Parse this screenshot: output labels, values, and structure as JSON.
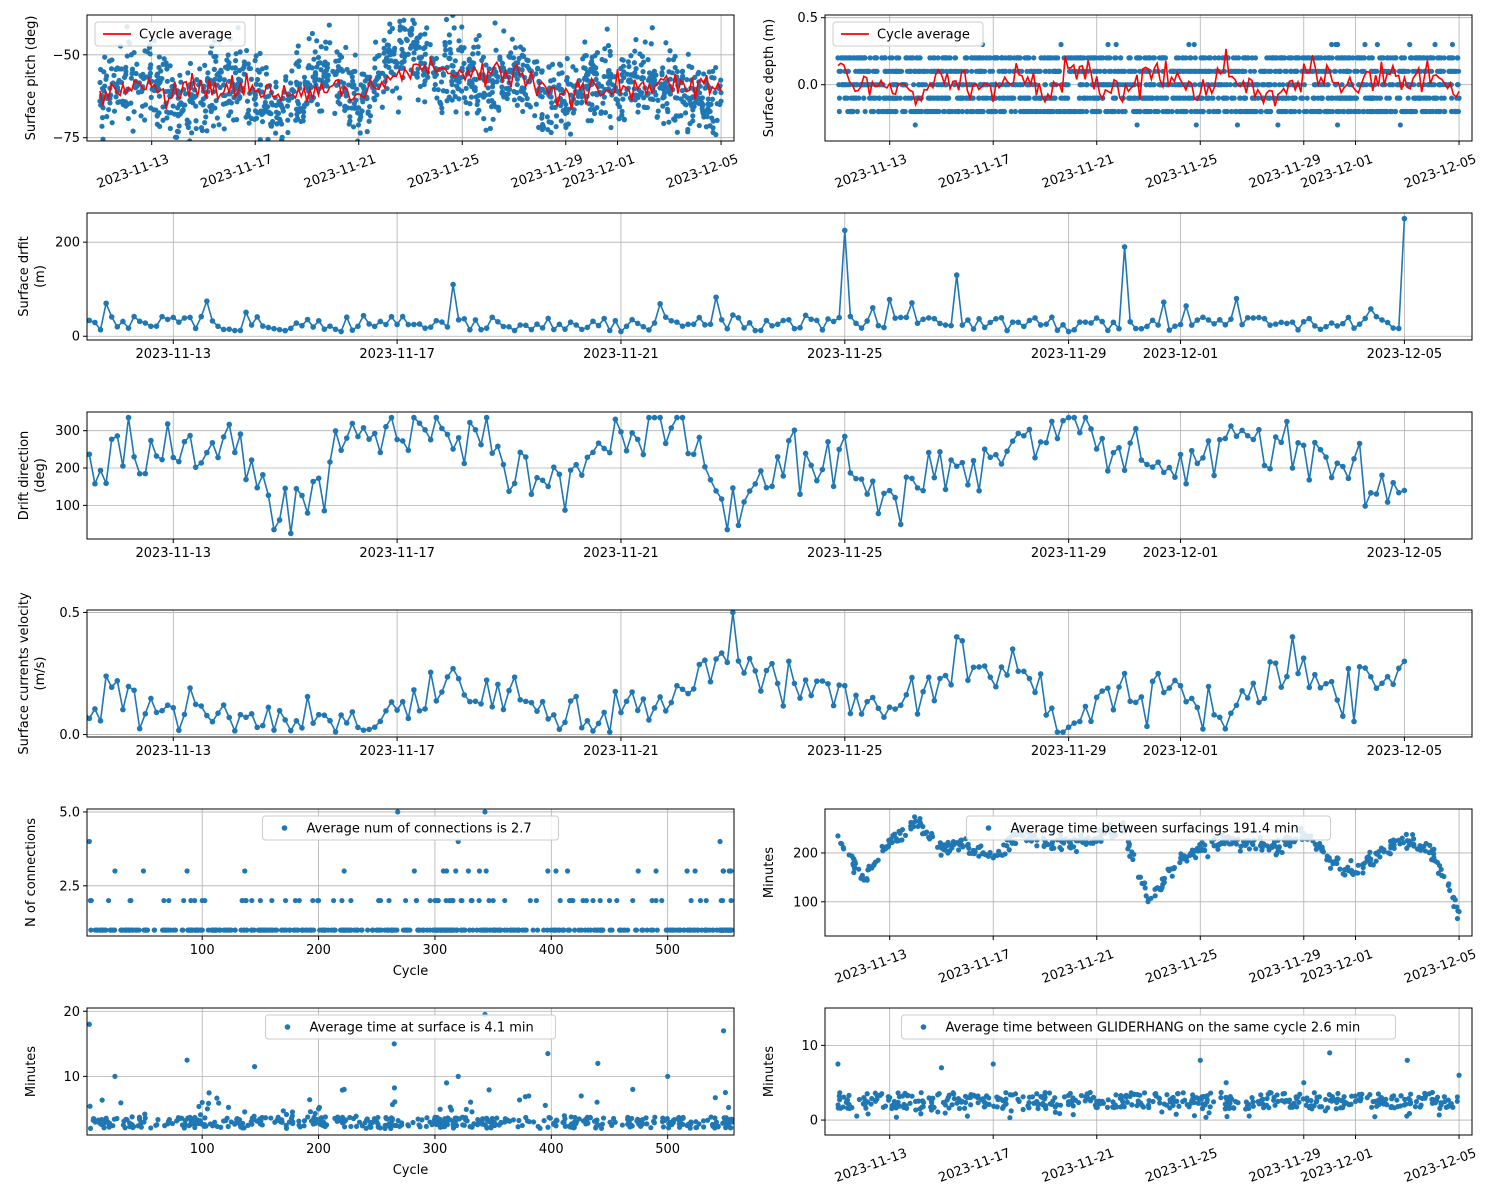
{
  "chart_data": [
    {
      "id": "pitch",
      "type": "scatter",
      "ylabel": "Surface pitch (deg)",
      "xaxis": "date",
      "xlim": [
        "2023-11-10T12:00",
        "2023-12-05T12:00"
      ],
      "ylim": [
        -76,
        -38
      ],
      "yticks": [
        -75,
        -50
      ],
      "xticks": [
        "2023-11-13",
        "2023-11-17",
        "2023-11-21",
        "2023-11-25",
        "2023-11-29",
        "2023-12-01",
        "2023-12-05"
      ],
      "xtick_rotation": 20,
      "scatter_color": "#1f77b4",
      "series": [
        {
          "name": "Cycle average",
          "kind": "line",
          "color": "#ff0000",
          "x": [
            "2023-11-11",
            "2023-11-12",
            "2023-11-13",
            "2023-11-14",
            "2023-11-15",
            "2023-11-16",
            "2023-11-17",
            "2023-11-18",
            "2023-11-19",
            "2023-11-20",
            "2023-11-21",
            "2023-11-22",
            "2023-11-23",
            "2023-11-24",
            "2023-11-25",
            "2023-11-26",
            "2023-11-27",
            "2023-11-28",
            "2023-11-29",
            "2023-11-30",
            "2023-12-01",
            "2023-12-02",
            "2023-12-03",
            "2023-12-04",
            "2023-12-05"
          ],
          "y": [
            -62,
            -59,
            -60,
            -62,
            -60,
            -61,
            -59,
            -62,
            -61,
            -60,
            -62,
            -57,
            -53,
            -55,
            -56,
            -57,
            -55,
            -58,
            -62,
            -60,
            -59,
            -59,
            -58,
            -60,
            -61
          ]
        },
        {
          "name": "",
          "kind": "scatter",
          "x": [
            "2023-11-11",
            "2023-11-12",
            "2023-11-13",
            "2023-11-14",
            "2023-11-15",
            "2023-11-16",
            "2023-11-17",
            "2023-11-18",
            "2023-11-19",
            "2023-11-20",
            "2023-11-21",
            "2023-11-22",
            "2023-11-23",
            "2023-11-24",
            "2023-11-25",
            "2023-11-26",
            "2023-11-27",
            "2023-11-28",
            "2023-11-29",
            "2023-11-30",
            "2023-12-01",
            "2023-12-02",
            "2023-12-03",
            "2023-12-04",
            "2023-12-05"
          ],
          "y": [
            -64,
            -56,
            -58,
            -66,
            -61,
            -58,
            -63,
            -65,
            -60,
            -55,
            -66,
            -52,
            -48,
            -56,
            -54,
            -60,
            -53,
            -61,
            -65,
            -58,
            -61,
            -57,
            -60,
            -63,
            -64
          ]
        }
      ],
      "legend": "top-left",
      "grid": true
    },
    {
      "id": "depth",
      "type": "scatter",
      "ylabel": "Surface depth (m)",
      "xaxis": "date",
      "xlim": [
        "2023-11-10T12:00",
        "2023-12-05T12:00"
      ],
      "ylim": [
        -0.42,
        0.52
      ],
      "yticks": [
        0.0,
        0.5
      ],
      "xticks": [
        "2023-11-13",
        "2023-11-17",
        "2023-11-21",
        "2023-11-25",
        "2023-11-29",
        "2023-12-01",
        "2023-12-05"
      ],
      "xtick_rotation": 20,
      "series": [
        {
          "name": "Cycle average",
          "kind": "line",
          "color": "#ff0000",
          "x": [
            "2023-11-11",
            "2023-11-12",
            "2023-11-13",
            "2023-11-14",
            "2023-11-15",
            "2023-11-16",
            "2023-11-17",
            "2023-11-18",
            "2023-11-19",
            "2023-11-20",
            "2023-11-21",
            "2023-11-22",
            "2023-11-23",
            "2023-11-24",
            "2023-11-25",
            "2023-11-26",
            "2023-11-27",
            "2023-11-28",
            "2023-11-29",
            "2023-11-30",
            "2023-12-01",
            "2023-12-02",
            "2023-12-03",
            "2023-12-04",
            "2023-12-05"
          ],
          "y": [
            0.1,
            -0.05,
            0.0,
            -0.1,
            0.05,
            0.0,
            -0.05,
            0.1,
            -0.1,
            0.15,
            0.0,
            -0.05,
            0.1,
            0.05,
            -0.1,
            0.1,
            0.0,
            -0.15,
            0.1,
            0.05,
            -0.05,
            0.1,
            0.0,
            0.1,
            -0.05
          ]
        },
        {
          "name": "",
          "kind": "scatter",
          "x": [
            "2023-11-11",
            "2023-11-12",
            "2023-11-13",
            "2023-11-14",
            "2023-11-15",
            "2023-11-16",
            "2023-11-17",
            "2023-11-18",
            "2023-11-19",
            "2023-11-20",
            "2023-11-21",
            "2023-11-22",
            "2023-11-23",
            "2023-11-24",
            "2023-11-25",
            "2023-11-26",
            "2023-11-27",
            "2023-11-28",
            "2023-11-29",
            "2023-11-30",
            "2023-12-01",
            "2023-12-02",
            "2023-12-03",
            "2023-12-04",
            "2023-12-05"
          ],
          "y": [
            0.2,
            -0.1,
            0.1,
            -0.2,
            0.1,
            0.0,
            -0.1,
            0.2,
            -0.2,
            0.2,
            0.0,
            -0.1,
            0.2,
            0.1,
            -0.2,
            0.2,
            0.0,
            -0.3,
            0.2,
            0.1,
            -0.1,
            0.2,
            0.0,
            0.2,
            -0.1
          ]
        }
      ],
      "legend": "top-left",
      "grid": true
    },
    {
      "id": "drift",
      "type": "line",
      "ylabel": "Surface drfit (m)",
      "xaxis": "date",
      "xlim": [
        "2023-11-11T11:00",
        "2023-12-06T05:00"
      ],
      "ylim": [
        -8,
        262
      ],
      "yticks": [
        0,
        200
      ],
      "xticks": [
        "2023-11-13",
        "2023-11-17",
        "2023-11-21",
        "2023-11-25",
        "2023-11-29",
        "2023-12-01",
        "2023-12-05"
      ],
      "series": [
        {
          "name": "",
          "x": [
            "2023-11-11",
            "2023-11-12",
            "2023-11-13",
            "2023-11-14",
            "2023-11-15",
            "2023-11-16",
            "2023-11-17",
            "2023-11-18",
            "2023-11-19",
            "2023-11-20",
            "2023-11-21",
            "2023-11-22",
            "2023-11-23",
            "2023-11-24",
            "2023-11-25",
            "2023-11-26",
            "2023-11-27",
            "2023-11-28",
            "2023-11-29",
            "2023-11-30",
            "2023-12-01",
            "2023-12-02",
            "2023-12-03",
            "2023-12-04",
            "2023-12-05"
          ],
          "y": [
            35,
            20,
            40,
            15,
            12,
            10,
            25,
            110,
            20,
            15,
            10,
            30,
            45,
            35,
            225,
            40,
            130,
            30,
            10,
            190,
            25,
            80,
            30,
            40,
            250
          ]
        }
      ],
      "grid": true
    },
    {
      "id": "direction",
      "type": "line",
      "ylabel": "Drift direction (deg)",
      "xaxis": "date",
      "xlim": [
        "2023-11-11T11:00",
        "2023-12-06T05:00"
      ],
      "ylim": [
        10,
        350
      ],
      "yticks": [
        100,
        200,
        300
      ],
      "xticks": [
        "2023-11-13",
        "2023-11-17",
        "2023-11-21",
        "2023-11-25",
        "2023-11-29",
        "2023-12-01",
        "2023-12-05"
      ],
      "series": [
        {
          "name": "",
          "x": [
            "2023-11-11",
            "2023-11-12",
            "2023-11-13",
            "2023-11-14",
            "2023-11-15",
            "2023-11-16",
            "2023-11-17",
            "2023-11-18",
            "2023-11-19",
            "2023-11-20",
            "2023-11-21",
            "2023-11-22",
            "2023-11-23",
            "2023-11-24",
            "2023-11-25",
            "2023-11-26",
            "2023-11-27",
            "2023-11-28",
            "2023-11-29",
            "2023-11-30",
            "2023-12-01",
            "2023-12-02",
            "2023-12-03",
            "2023-12-04",
            "2023-12-05"
          ],
          "y": [
            160,
            250,
            220,
            300,
            40,
            270,
            320,
            260,
            220,
            180,
            290,
            330,
            80,
            230,
            220,
            110,
            220,
            230,
            300,
            240,
            200,
            260,
            250,
            170,
            140
          ]
        }
      ],
      "grid": true
    },
    {
      "id": "velocity",
      "type": "line",
      "ylabel": "Surface currents velocity (m/s)",
      "xaxis": "date",
      "xlim": [
        "2023-11-11T11:00",
        "2023-12-06T05:00"
      ],
      "ylim": [
        -0.01,
        0.51
      ],
      "yticks": [
        0.0,
        0.5
      ],
      "xticks": [
        "2023-11-13",
        "2023-11-17",
        "2023-11-21",
        "2023-11-25",
        "2023-11-29",
        "2023-12-01",
        "2023-12-05"
      ],
      "series": [
        {
          "name": "",
          "x": [
            "2023-11-11",
            "2023-11-12",
            "2023-11-13",
            "2023-11-14",
            "2023-11-15",
            "2023-11-16",
            "2023-11-17",
            "2023-11-18",
            "2023-11-19",
            "2023-11-20",
            "2023-11-21",
            "2023-11-22",
            "2023-11-23",
            "2023-11-24",
            "2023-11-25",
            "2023-11-26",
            "2023-11-27",
            "2023-11-28",
            "2023-11-29",
            "2023-11-30",
            "2023-12-01",
            "2023-12-02",
            "2023-12-03",
            "2023-12-04",
            "2023-12-05"
          ],
          "y": [
            0.03,
            0.22,
            0.11,
            0.07,
            0.06,
            0.08,
            0.1,
            0.27,
            0.18,
            0.05,
            0.09,
            0.2,
            0.5,
            0.3,
            0.2,
            0.12,
            0.4,
            0.35,
            0.03,
            0.25,
            0.2,
            0.12,
            0.4,
            0.27,
            0.3
          ]
        }
      ],
      "grid": true
    },
    {
      "id": "connections",
      "type": "scatter",
      "ylabel": "N of connections",
      "xlabel": "Cycle",
      "xlim": [
        1,
        557
      ],
      "ylim": [
        0.8,
        5.1
      ],
      "yticks": [
        2.5,
        5.0
      ],
      "xticks": [
        100,
        200,
        300,
        400,
        500
      ],
      "series": [
        {
          "name": "Average num of connections is 2.7",
          "x": [
            3,
            25,
            50,
            87,
            100,
            125,
            150,
            175,
            200,
            222,
            250,
            268,
            300,
            310,
            320,
            343,
            360,
            397,
            420,
            450,
            490,
            520,
            545,
            548,
            555
          ],
          "y": [
            4,
            3,
            1,
            3,
            2,
            1,
            2,
            1,
            2,
            3,
            1,
            5,
            2,
            3,
            4,
            5,
            2,
            3,
            1,
            2,
            3,
            1,
            4,
            3,
            1
          ]
        }
      ],
      "legend": "top-center",
      "grid": true
    },
    {
      "id": "surfacing_interval",
      "type": "scatter",
      "ylabel": "Minutes",
      "xaxis": "date",
      "xlim": [
        "2023-11-10T12:00",
        "2023-12-05T12:00"
      ],
      "ylim": [
        30,
        290
      ],
      "yticks": [
        100,
        200
      ],
      "xticks": [
        "2023-11-13",
        "2023-11-17",
        "2023-11-21",
        "2023-11-25",
        "2023-11-29",
        "2023-12-01",
        "2023-12-05"
      ],
      "xtick_rotation": 20,
      "series": [
        {
          "name": "Average time between surfacings 191.4 min",
          "x": [
            "2023-11-11",
            "2023-11-12",
            "2023-11-13",
            "2023-11-14",
            "2023-11-15",
            "2023-11-16",
            "2023-11-17",
            "2023-11-18",
            "2023-11-19",
            "2023-11-20",
            "2023-11-21",
            "2023-11-22",
            "2023-11-23",
            "2023-11-24",
            "2023-11-25",
            "2023-11-26",
            "2023-11-27",
            "2023-11-28",
            "2023-11-29",
            "2023-11-30",
            "2023-12-01",
            "2023-12-02",
            "2023-12-03",
            "2023-12-04",
            "2023-12-05"
          ],
          "y": [
            235,
            145,
            220,
            265,
            210,
            215,
            190,
            240,
            225,
            215,
            230,
            250,
            105,
            170,
            205,
            225,
            220,
            210,
            240,
            185,
            160,
            210,
            225,
            200,
            80
          ]
        }
      ],
      "legend": "top-center",
      "grid": true
    },
    {
      "id": "surface_time",
      "type": "scatter",
      "ylabel": "Minutes",
      "xlabel": "Cycle",
      "xlim": [
        1,
        557
      ],
      "ylim": [
        1,
        20.5
      ],
      "yticks": [
        10,
        20
      ],
      "xticks": [
        100,
        200,
        300,
        400,
        500
      ],
      "series": [
        {
          "name": "Average time at surface is 4.1 min",
          "x": [
            3,
            25,
            50,
            87,
            100,
            125,
            145,
            175,
            200,
            222,
            250,
            265,
            300,
            310,
            320,
            343,
            360,
            397,
            420,
            440,
            470,
            500,
            520,
            548,
            555
          ],
          "y": [
            18,
            10,
            3,
            12.5,
            6,
            3,
            11.5,
            3,
            5,
            8,
            3,
            15,
            3,
            9,
            10,
            19.5,
            3,
            13.5,
            3,
            12,
            8,
            10,
            3,
            17,
            3
          ]
        }
      ],
      "legend": "top-center",
      "grid": true
    },
    {
      "id": "gliderhang",
      "type": "scatter",
      "ylabel": "Minutes",
      "xaxis": "date",
      "xlim": [
        "2023-11-10T12:00",
        "2023-12-05T12:00"
      ],
      "ylim": [
        -2,
        15
      ],
      "yticks": [
        0,
        10
      ],
      "xticks": [
        "2023-11-13",
        "2023-11-17",
        "2023-11-21",
        "2023-11-25",
        "2023-11-29",
        "2023-12-01",
        "2023-12-05"
      ],
      "xtick_rotation": 20,
      "series": [
        {
          "name": "Average time between GLIDERHANG on the same cycle 2.6 min",
          "x": [
            "2023-11-11",
            "2023-11-12",
            "2023-11-13",
            "2023-11-14",
            "2023-11-15",
            "2023-11-16",
            "2023-11-17",
            "2023-11-18",
            "2023-11-19",
            "2023-11-20",
            "2023-11-21",
            "2023-11-22",
            "2023-11-23",
            "2023-11-24",
            "2023-11-25",
            "2023-11-26",
            "2023-11-27",
            "2023-11-28",
            "2023-11-29",
            "2023-11-30",
            "2023-12-01",
            "2023-12-02",
            "2023-12-03",
            "2023-12-04",
            "2023-12-05"
          ],
          "y": [
            7.5,
            3,
            3,
            2.5,
            7,
            3,
            7.5,
            2.5,
            3,
            2.5,
            2.5,
            2.5,
            2,
            2.5,
            8,
            5,
            3,
            2.5,
            5,
            9,
            2.5,
            3,
            8,
            2.5,
            6
          ]
        }
      ],
      "legend": "top-center",
      "grid": true
    }
  ]
}
